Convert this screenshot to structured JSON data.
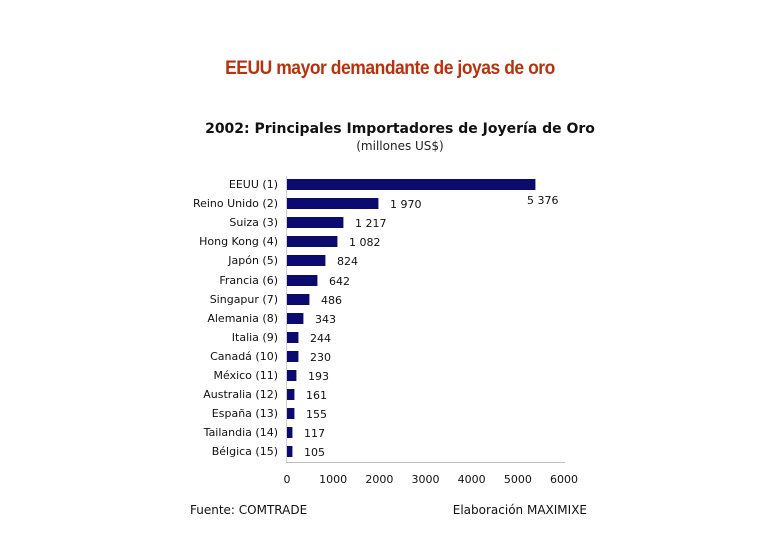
{
  "slide": {
    "title": "EEUU mayor demandante de joyas de oro"
  },
  "chart_data": {
    "type": "bar",
    "orientation": "horizontal",
    "title": "2002: Principales Importadores de Joyería de Oro",
    "subtitle": "(millones US$)",
    "xlabel": "",
    "ylabel": "",
    "xlim": [
      0,
      6000
    ],
    "xticks": [
      "0",
      "1000",
      "2000",
      "3000",
      "4000",
      "5000",
      "6000"
    ],
    "grid": false,
    "legend": null,
    "bar_color": "#0b0b6f",
    "categories": [
      "EEUU (1)",
      "Reino Unido (2)",
      "Suiza (3)",
      "Hong Kong (4)",
      "Japón (5)",
      "Francia (6)",
      "Singapur (7)",
      "Alemania (8)",
      "Italia (9)",
      "Canadá (10)",
      "México (11)",
      "Australia (12)",
      "España (13)",
      "Tailandia (14)",
      "Bélgica (15)"
    ],
    "values": [
      5376,
      1970,
      1217,
      1082,
      824,
      642,
      486,
      343,
      244,
      230,
      193,
      161,
      155,
      117,
      105
    ],
    "value_labels": [
      "5 376",
      "1 970",
      "1 217",
      "1 082",
      "824",
      "642",
      "486",
      "343",
      "244",
      "230",
      "193",
      "161",
      "155",
      "117",
      "105"
    ]
  },
  "footer": {
    "source": "Fuente: COMTRADE",
    "credit": "Elaboración MAXIMIXE"
  }
}
